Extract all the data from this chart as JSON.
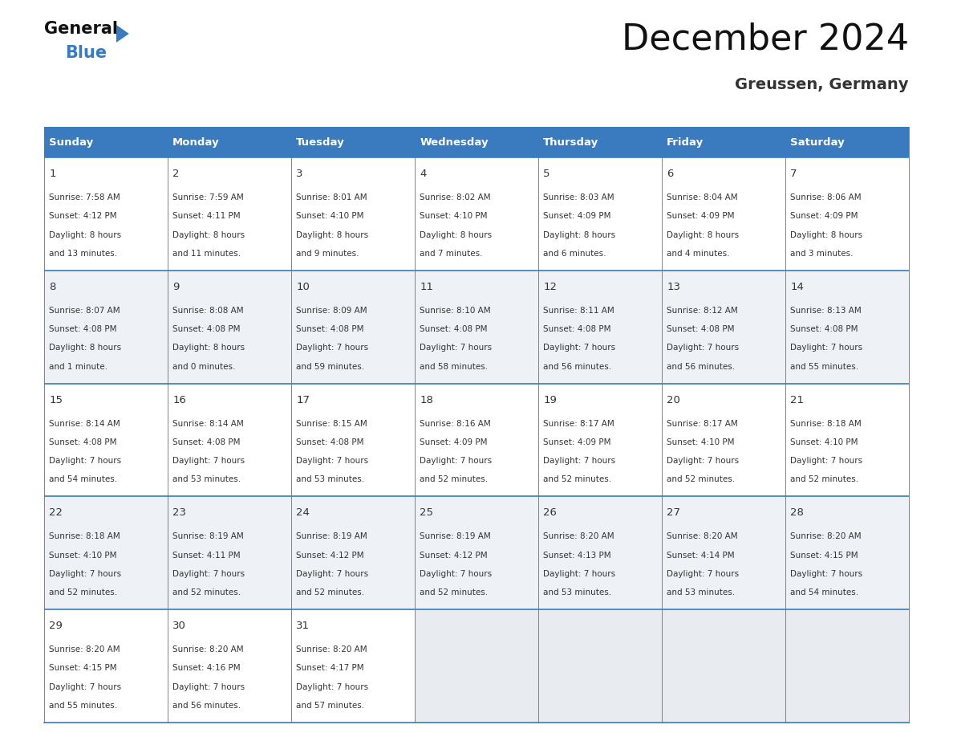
{
  "title": "December 2024",
  "subtitle": "Greussen, Germany",
  "header_color": "#3a7abf",
  "header_text_color": "#ffffff",
  "cell_bg_even": "#ffffff",
  "cell_bg_odd": "#eef2f7",
  "cell_bg_empty": "#e8ecf0",
  "text_color": "#333333",
  "border_color": "#3a7abf",
  "days_of_week": [
    "Sunday",
    "Monday",
    "Tuesday",
    "Wednesday",
    "Thursday",
    "Friday",
    "Saturday"
  ],
  "weeks": [
    [
      {
        "day": "1",
        "sunrise": "7:58 AM",
        "sunset": "4:12 PM",
        "dl1": "8 hours",
        "dl2": "and 13 minutes."
      },
      {
        "day": "2",
        "sunrise": "7:59 AM",
        "sunset": "4:11 PM",
        "dl1": "8 hours",
        "dl2": "and 11 minutes."
      },
      {
        "day": "3",
        "sunrise": "8:01 AM",
        "sunset": "4:10 PM",
        "dl1": "8 hours",
        "dl2": "and 9 minutes."
      },
      {
        "day": "4",
        "sunrise": "8:02 AM",
        "sunset": "4:10 PM",
        "dl1": "8 hours",
        "dl2": "and 7 minutes."
      },
      {
        "day": "5",
        "sunrise": "8:03 AM",
        "sunset": "4:09 PM",
        "dl1": "8 hours",
        "dl2": "and 6 minutes."
      },
      {
        "day": "6",
        "sunrise": "8:04 AM",
        "sunset": "4:09 PM",
        "dl1": "8 hours",
        "dl2": "and 4 minutes."
      },
      {
        "day": "7",
        "sunrise": "8:06 AM",
        "sunset": "4:09 PM",
        "dl1": "8 hours",
        "dl2": "and 3 minutes."
      }
    ],
    [
      {
        "day": "8",
        "sunrise": "8:07 AM",
        "sunset": "4:08 PM",
        "dl1": "8 hours",
        "dl2": "and 1 minute."
      },
      {
        "day": "9",
        "sunrise": "8:08 AM",
        "sunset": "4:08 PM",
        "dl1": "8 hours",
        "dl2": "and 0 minutes."
      },
      {
        "day": "10",
        "sunrise": "8:09 AM",
        "sunset": "4:08 PM",
        "dl1": "7 hours",
        "dl2": "and 59 minutes."
      },
      {
        "day": "11",
        "sunrise": "8:10 AM",
        "sunset": "4:08 PM",
        "dl1": "7 hours",
        "dl2": "and 58 minutes."
      },
      {
        "day": "12",
        "sunrise": "8:11 AM",
        "sunset": "4:08 PM",
        "dl1": "7 hours",
        "dl2": "and 56 minutes."
      },
      {
        "day": "13",
        "sunrise": "8:12 AM",
        "sunset": "4:08 PM",
        "dl1": "7 hours",
        "dl2": "and 56 minutes."
      },
      {
        "day": "14",
        "sunrise": "8:13 AM",
        "sunset": "4:08 PM",
        "dl1": "7 hours",
        "dl2": "and 55 minutes."
      }
    ],
    [
      {
        "day": "15",
        "sunrise": "8:14 AM",
        "sunset": "4:08 PM",
        "dl1": "7 hours",
        "dl2": "and 54 minutes."
      },
      {
        "day": "16",
        "sunrise": "8:14 AM",
        "sunset": "4:08 PM",
        "dl1": "7 hours",
        "dl2": "and 53 minutes."
      },
      {
        "day": "17",
        "sunrise": "8:15 AM",
        "sunset": "4:08 PM",
        "dl1": "7 hours",
        "dl2": "and 53 minutes."
      },
      {
        "day": "18",
        "sunrise": "8:16 AM",
        "sunset": "4:09 PM",
        "dl1": "7 hours",
        "dl2": "and 52 minutes."
      },
      {
        "day": "19",
        "sunrise": "8:17 AM",
        "sunset": "4:09 PM",
        "dl1": "7 hours",
        "dl2": "and 52 minutes."
      },
      {
        "day": "20",
        "sunrise": "8:17 AM",
        "sunset": "4:10 PM",
        "dl1": "7 hours",
        "dl2": "and 52 minutes."
      },
      {
        "day": "21",
        "sunrise": "8:18 AM",
        "sunset": "4:10 PM",
        "dl1": "7 hours",
        "dl2": "and 52 minutes."
      }
    ],
    [
      {
        "day": "22",
        "sunrise": "8:18 AM",
        "sunset": "4:10 PM",
        "dl1": "7 hours",
        "dl2": "and 52 minutes."
      },
      {
        "day": "23",
        "sunrise": "8:19 AM",
        "sunset": "4:11 PM",
        "dl1": "7 hours",
        "dl2": "and 52 minutes."
      },
      {
        "day": "24",
        "sunrise": "8:19 AM",
        "sunset": "4:12 PM",
        "dl1": "7 hours",
        "dl2": "and 52 minutes."
      },
      {
        "day": "25",
        "sunrise": "8:19 AM",
        "sunset": "4:12 PM",
        "dl1": "7 hours",
        "dl2": "and 52 minutes."
      },
      {
        "day": "26",
        "sunrise": "8:20 AM",
        "sunset": "4:13 PM",
        "dl1": "7 hours",
        "dl2": "and 53 minutes."
      },
      {
        "day": "27",
        "sunrise": "8:20 AM",
        "sunset": "4:14 PM",
        "dl1": "7 hours",
        "dl2": "and 53 minutes."
      },
      {
        "day": "28",
        "sunrise": "8:20 AM",
        "sunset": "4:15 PM",
        "dl1": "7 hours",
        "dl2": "and 54 minutes."
      }
    ],
    [
      {
        "day": "29",
        "sunrise": "8:20 AM",
        "sunset": "4:15 PM",
        "dl1": "7 hours",
        "dl2": "and 55 minutes."
      },
      {
        "day": "30",
        "sunrise": "8:20 AM",
        "sunset": "4:16 PM",
        "dl1": "7 hours",
        "dl2": "and 56 minutes."
      },
      {
        "day": "31",
        "sunrise": "8:20 AM",
        "sunset": "4:17 PM",
        "dl1": "7 hours",
        "dl2": "and 57 minutes."
      },
      null,
      null,
      null,
      null
    ]
  ]
}
